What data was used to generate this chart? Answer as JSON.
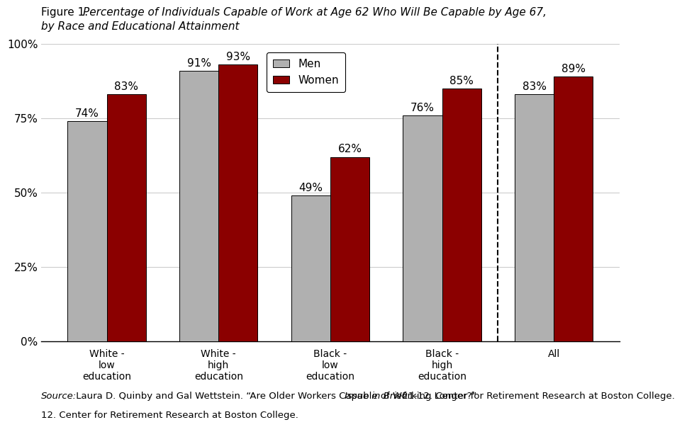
{
  "categories": [
    "White -\nlow\neducation",
    "White -\nhigh\neducation",
    "Black -\nlow\neducation",
    "Black -\nhigh\neducation",
    "All"
  ],
  "men_values": [
    74,
    91,
    49,
    76,
    83
  ],
  "women_values": [
    83,
    93,
    62,
    85,
    89
  ],
  "men_color": "#b0b0b0",
  "women_color": "#8b0000",
  "bar_width": 0.35,
  "ylim": [
    0,
    100
  ],
  "yticks": [
    0,
    25,
    50,
    75,
    100
  ],
  "ytick_labels": [
    "0%",
    "25%",
    "50%",
    "75%",
    "100%"
  ],
  "legend_men": "Men",
  "legend_women": "Women",
  "title_normal": "Figure 1. ",
  "title_italic": "Percentage of Individuals Capable of Work at Age 62 Who Will Be Capable by Age 67,",
  "title_line2": "by Race and Educational Attainment",
  "source_italic": "Source:",
  "source_normal": " Laura D. Quinby and Gal Wettstein. “Are Older Workers Capable of Working Longer?” ",
  "source_italic2": "Issue in Brief",
  "source_normal2": " 21-12. Center for Retirement Research at Boston College.",
  "background_color": "#ffffff",
  "grid_color": "#cccccc",
  "label_fontsize": 11,
  "tick_fontsize": 11,
  "title_fontsize": 11,
  "source_fontsize": 9.5
}
